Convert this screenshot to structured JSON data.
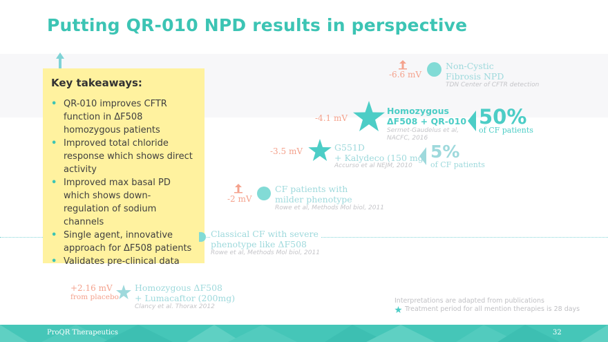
{
  "slide": {
    "title": "Putting QR-010 NPD results in perspective"
  },
  "takeaways": {
    "heading": "Key takeaways:",
    "items": [
      "QR-010 improves CFTR function in ΔF508 homozygous patients",
      "Improved total chloride response which shows direct activity",
      "Improved max basal PD which shows down-regulation of sodium channels",
      "Single agent, innovative approach for ΔF508 patients",
      "Validates pre-clinical data"
    ]
  },
  "datapoints": {
    "noncf": {
      "mv": "-6.6 mV",
      "label1": "Non-Cystic",
      "label2": "Fibrosis NPD",
      "cite": "TDN Center of CFTR detection"
    },
    "qr010": {
      "mv": "-4.1 mV",
      "label1": "Homozygous",
      "label2": "ΔF508 + QR-010",
      "cite1": "Sermet-Gaudelus et al,",
      "cite2": "NACFC, 2016",
      "pct": "50%",
      "pct_label": "of CF patients"
    },
    "g551d": {
      "mv": "-3.5 mV",
      "label1": "G551D",
      "label2": "+ Kalydeco (150 mg)",
      "cite": "Accurso et al NEJM, 2010",
      "pct": "5%",
      "pct_label": "of CF patients"
    },
    "mild": {
      "mv": "-2 mV",
      "label1": "CF patients with",
      "label2": "milder phenotype",
      "cite": "Rowe et al, Methods Mol biol, 2011"
    },
    "classical": {
      "label1": "Classical CF with severe",
      "label2": "phenotype like ΔF508",
      "cite": "Rowe et al, Methods Mol biol, 2011"
    },
    "lumacaftor": {
      "mv": "+2.16 mV",
      "mv_sub": "from placebo",
      "label1": "Homozygous ΔF508",
      "label2": "+ Lumacaftor (200mg)",
      "cite": "Clancy et al. Thorax 2012"
    }
  },
  "notes": {
    "line1": "Interpretations are adapted from publications",
    "line2": "Treatment period for all mention therapies is 28 days"
  },
  "footer": {
    "company": "ProQR Therapeutics",
    "page": "32"
  },
  "colors": {
    "accent": "#3cc4b4",
    "highlight_box": "#fff29f",
    "mv_text": "#f4a28d",
    "footer": "#45c6b8"
  }
}
